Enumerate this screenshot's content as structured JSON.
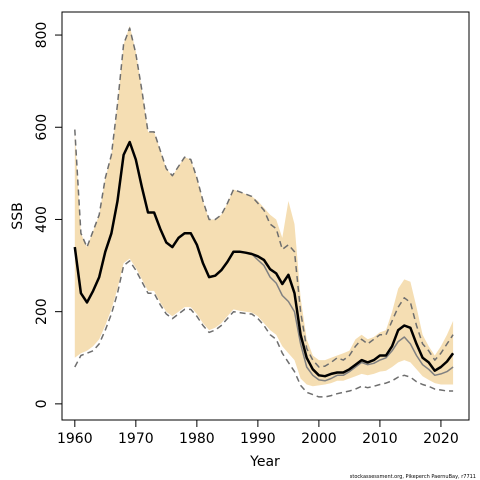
{
  "chart_data": {
    "type": "line",
    "x_label": "Year",
    "y_label": "SSB",
    "footer": "stockassessment.org, Pikeperch PaernuBay, r7711",
    "xlim": [
      1957.9,
      2024.6
    ],
    "xticks": [
      1960,
      1970,
      1980,
      1990,
      2000,
      2010,
      2020
    ],
    "ylim": [
      -35,
      850
    ],
    "yticks": [
      0,
      200,
      400,
      600,
      800
    ],
    "x": [
      1960,
      1961,
      1962,
      1963,
      1964,
      1965,
      1966,
      1967,
      1968,
      1969,
      1970,
      1971,
      1972,
      1973,
      1974,
      1975,
      1976,
      1977,
      1978,
      1979,
      1980,
      1981,
      1982,
      1983,
      1984,
      1985,
      1986,
      1987,
      1988,
      1989,
      1990,
      1991,
      1992,
      1993,
      1994,
      1995,
      1996,
      1997,
      1998,
      1999,
      2000,
      2001,
      2002,
      2003,
      2004,
      2005,
      2006,
      2007,
      2008,
      2009,
      2010,
      2011,
      2012,
      2013,
      2014,
      2015,
      2016,
      2017,
      2018,
      2019,
      2020,
      2021,
      2022
    ],
    "band": {
      "color": "#f5deb3",
      "upper": [
        590,
        370,
        340,
        375,
        410,
        490,
        540,
        650,
        780,
        820,
        765,
        680,
        590,
        590,
        550,
        510,
        495,
        515,
        535,
        530,
        490,
        440,
        400,
        400,
        410,
        435,
        465,
        460,
        455,
        450,
        440,
        425,
        410,
        400,
        360,
        440,
        390,
        230,
        140,
        105,
        95,
        95,
        100,
        105,
        110,
        115,
        140,
        150,
        140,
        145,
        155,
        160,
        200,
        250,
        270,
        265,
        210,
        150,
        125,
        105,
        125,
        150,
        180
      ],
      "lower": [
        100,
        110,
        115,
        125,
        140,
        170,
        205,
        250,
        305,
        315,
        295,
        270,
        245,
        245,
        220,
        200,
        190,
        200,
        210,
        210,
        195,
        175,
        160,
        165,
        175,
        190,
        205,
        202,
        200,
        198,
        190,
        175,
        160,
        150,
        125,
        110,
        95,
        55,
        42,
        38,
        40,
        42,
        45,
        50,
        50,
        55,
        60,
        65,
        62,
        65,
        70,
        72,
        80,
        90,
        95,
        90,
        75,
        60,
        52,
        45,
        42,
        42,
        42
      ]
    },
    "series": [
      {
        "color": "#6e6e6e",
        "width": 1.5,
        "dash": true,
        "values": [
          595,
          370,
          340,
          375,
          410,
          490,
          540,
          650,
          780,
          815,
          760,
          680,
          590,
          590,
          550,
          510,
          495,
          515,
          535,
          530,
          490,
          440,
          400,
          400,
          410,
          435,
          465,
          460,
          455,
          450,
          435,
          420,
          390,
          380,
          335,
          345,
          330,
          200,
          120,
          95,
          80,
          82,
          90,
          100,
          95,
          105,
          125,
          140,
          130,
          140,
          150,
          150,
          180,
          210,
          230,
          220,
          170,
          130,
          115,
          95,
          110,
          130,
          150
        ]
      },
      {
        "color": "#6e6e6e",
        "width": 1.5,
        "dash": true,
        "values": [
          80,
          105,
          110,
          115,
          130,
          160,
          195,
          240,
          300,
          310,
          290,
          265,
          240,
          240,
          215,
          195,
          185,
          195,
          205,
          205,
          190,
          170,
          155,
          160,
          170,
          185,
          200,
          198,
          196,
          195,
          185,
          170,
          150,
          140,
          110,
          90,
          70,
          40,
          25,
          20,
          15,
          15,
          18,
          22,
          25,
          28,
          32,
          38,
          35,
          38,
          42,
          45,
          50,
          58,
          62,
          58,
          48,
          42,
          38,
          32,
          30,
          28,
          28
        ]
      },
      {
        "color": "#808080",
        "width": 1.5,
        "dash": false,
        "values": [
          340,
          240,
          220,
          245,
          275,
          330,
          370,
          440,
          540,
          568,
          530,
          470,
          415,
          415,
          380,
          350,
          340,
          360,
          370,
          370,
          345,
          305,
          275,
          278,
          290,
          308,
          330,
          330,
          328,
          325,
          312,
          300,
          275,
          262,
          235,
          222,
          200,
          130,
          80,
          62,
          52,
          50,
          55,
          62,
          62,
          70,
          80,
          90,
          85,
          88,
          95,
          100,
          115,
          135,
          145,
          130,
          105,
          85,
          75,
          62,
          65,
          70,
          80
        ]
      },
      {
        "color": "#000000",
        "width": 2.5,
        "dash": false,
        "values": [
          340,
          240,
          220,
          245,
          275,
          330,
          370,
          440,
          540,
          568,
          530,
          470,
          415,
          415,
          380,
          350,
          340,
          360,
          370,
          370,
          345,
          305,
          275,
          278,
          290,
          308,
          330,
          330,
          328,
          325,
          320,
          312,
          292,
          283,
          260,
          280,
          240,
          150,
          100,
          75,
          62,
          60,
          65,
          68,
          68,
          75,
          85,
          95,
          90,
          95,
          105,
          105,
          125,
          160,
          170,
          165,
          130,
          100,
          90,
          72,
          80,
          92,
          110
        ]
      }
    ]
  }
}
